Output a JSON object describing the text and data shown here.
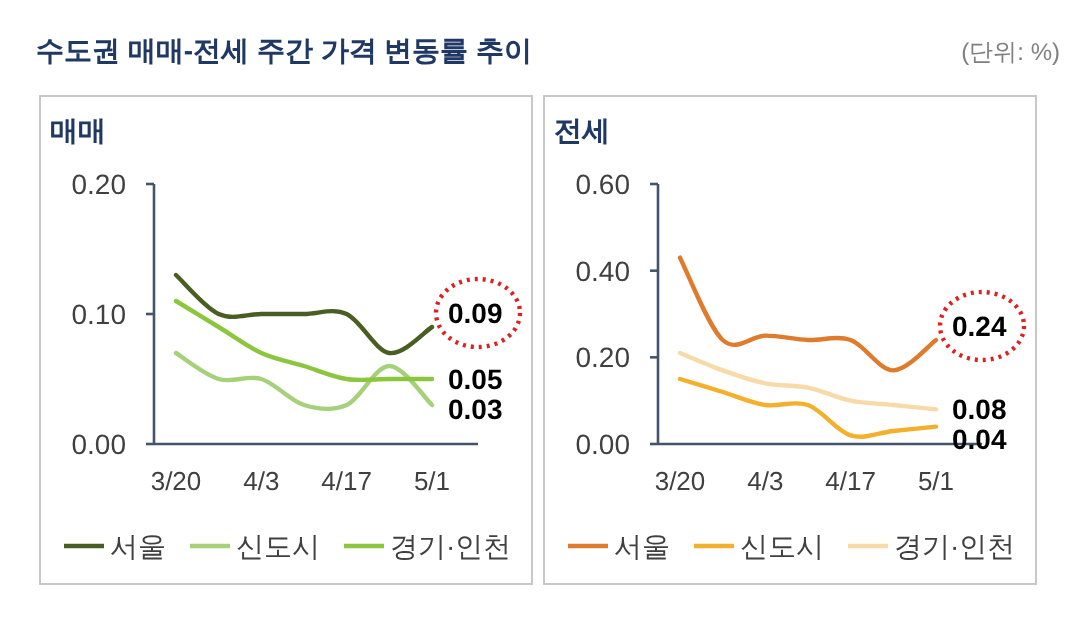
{
  "chart_data": [
    {
      "type": "line",
      "title": "매매",
      "annotations": [
        "수도권 매매-전세 주간 가격 변동률 추이",
        "(단위: %)"
      ],
      "categories": [
        "3/20",
        null,
        "4/3",
        null,
        "4/17",
        null,
        "5/1"
      ],
      "ylim": [
        0,
        0.2
      ],
      "yticks": [
        {
          "value": 0,
          "label": "0.00"
        },
        {
          "value": 0.1,
          "label": "0.10"
        },
        {
          "value": 0.2,
          "label": "0.20"
        }
      ],
      "legend": "bottom",
      "series": [
        {
          "name": "서울",
          "color": "#4a5e23",
          "values": [
            0.13,
            0.1,
            0.1,
            0.1,
            0.1,
            0.07,
            0.09
          ],
          "value_labels": [
            null,
            null,
            null,
            null,
            null,
            null,
            "0.09"
          ]
        },
        {
          "name": "신도시",
          "color": "#a6d17a",
          "values": [
            0.07,
            0.05,
            0.05,
            0.03,
            0.03,
            0.06,
            0.03
          ],
          "value_labels": [
            null,
            null,
            null,
            null,
            null,
            null,
            "0.03"
          ]
        },
        {
          "name": "경기·인천",
          "color": "#8cc63f",
          "values": [
            0.11,
            0.09,
            0.07,
            0.06,
            0.05,
            0.05,
            0.05
          ],
          "value_labels": [
            null,
            null,
            null,
            null,
            null,
            null,
            "0.05"
          ]
        }
      ]
    },
    {
      "type": "line",
      "title": "전세",
      "categories": [
        "3/20",
        null,
        "4/3",
        null,
        "4/17",
        null,
        "5/1"
      ],
      "ylim": [
        0,
        0.6
      ],
      "yticks": [
        {
          "value": 0,
          "label": "0.00"
        },
        {
          "value": 0.2,
          "label": "0.20"
        },
        {
          "value": 0.4,
          "label": "0.40"
        },
        {
          "value": 0.6,
          "label": "0.60"
        }
      ],
      "legend": "bottom",
      "series": [
        {
          "name": "서울",
          "color": "#e07b2c",
          "values": [
            0.43,
            0.24,
            0.25,
            0.24,
            0.24,
            0.17,
            0.24
          ],
          "value_labels": [
            null,
            null,
            null,
            null,
            null,
            null,
            "0.24"
          ]
        },
        {
          "name": "신도시",
          "color": "#f2b02c",
          "values": [
            0.15,
            0.12,
            0.09,
            0.09,
            0.02,
            0.03,
            0.04
          ],
          "value_labels": [
            null,
            null,
            null,
            null,
            null,
            null,
            "0.04"
          ]
        },
        {
          "name": "경기·인천",
          "color": "#f8d9a8",
          "values": [
            0.21,
            0.17,
            0.14,
            0.13,
            0.1,
            0.09,
            0.08
          ],
          "value_labels": [
            null,
            null,
            null,
            null,
            null,
            null,
            "0.08"
          ]
        }
      ]
    }
  ]
}
